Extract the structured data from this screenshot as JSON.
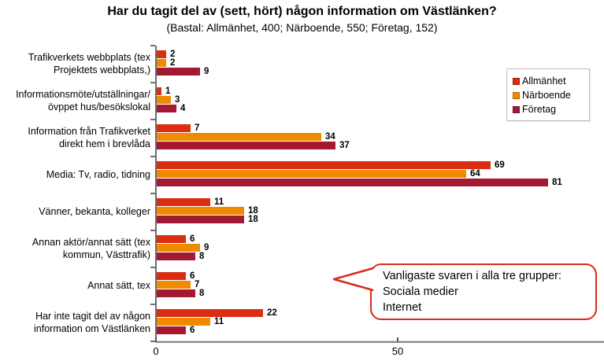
{
  "chart": {
    "title": "Har du tagit del av (sett, hört) någon information om Västlänken?",
    "subtitle": "(Bastal: Allmänhet, 400; Närboende, 550; Företag, 152)"
  },
  "chart_data": {
    "type": "bar",
    "orientation": "horizontal",
    "title": "Har du tagit del av (sett, hört) någon information om Västlänken?",
    "subtitle": "(Bastal: Allmänhet, 400; Närboende, 550; Företag, 152)",
    "categories": [
      "Trafikverkets webbplats (tex\nProjektets webbplats,)",
      "Informationsmöte/utställningar/\növppet hus/besökslokal",
      "Information från Trafikverket\ndirekt hem i brevlåda",
      "Media: Tv, radio, tidning",
      "Vänner, bekanta, kolleger",
      "Annan aktör/annat sätt (tex\nkommun, Västtrafik)",
      "Annat sätt, tex",
      "Har inte tagit del av någon\ninformation om Västlänken"
    ],
    "series": [
      {
        "name": "Allmänhet",
        "color": "#da2d13",
        "values": [
          2,
          1,
          7,
          69,
          11,
          6,
          6,
          22
        ]
      },
      {
        "name": "Närboende",
        "color": "#ee8b00",
        "values": [
          2,
          3,
          34,
          64,
          18,
          9,
          7,
          11
        ]
      },
      {
        "name": "Företag",
        "color": "#a41932",
        "values": [
          9,
          4,
          37,
          81,
          18,
          8,
          8,
          6
        ]
      }
    ],
    "xlim": [
      0,
      92
    ],
    "xticks": [
      0,
      50
    ],
    "grid": false,
    "legend_position": "upper-right"
  },
  "callout": {
    "lines": [
      "Vanligaste svaren i alla tre grupper:",
      "Sociala medier",
      "Internet"
    ]
  },
  "axis": {
    "tick_labels": [
      "0",
      "50"
    ]
  }
}
